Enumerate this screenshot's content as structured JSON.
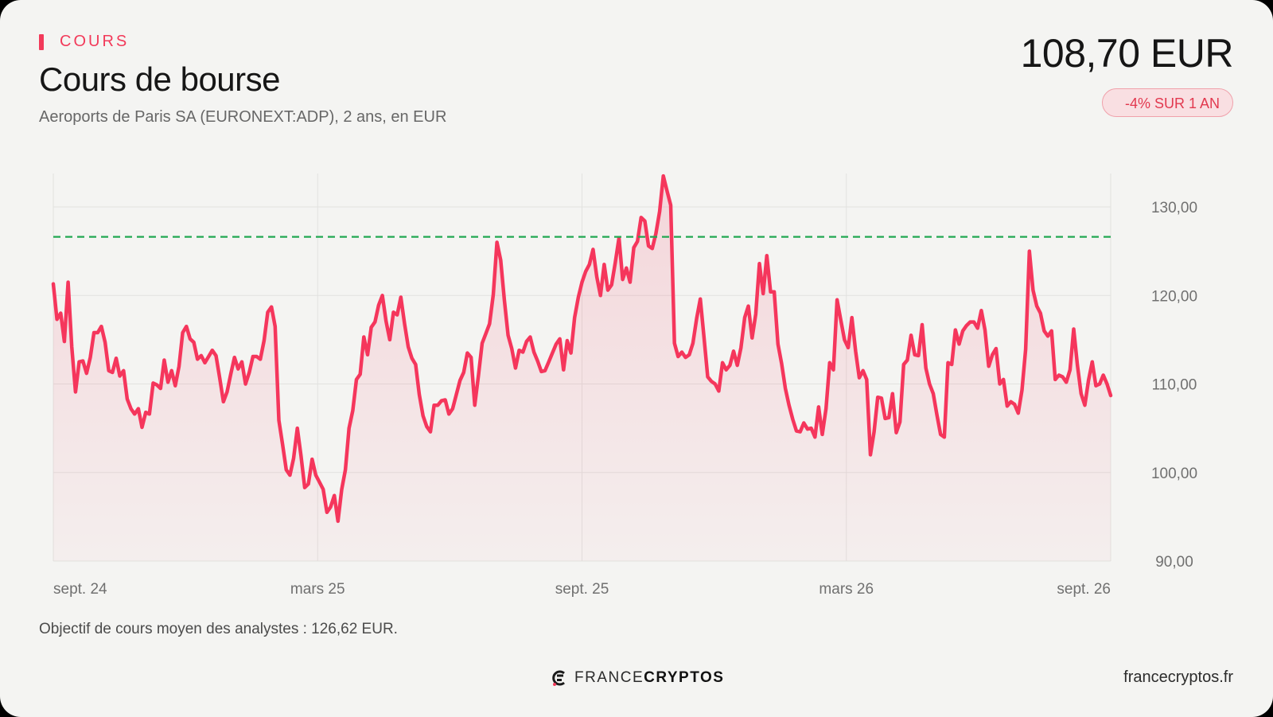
{
  "header": {
    "kicker": "COURS",
    "title": "Cours de bourse",
    "subtitle": "Aeroports de Paris SA (EURONEXT:ADP), 2 ans, en EUR",
    "price": "108,70 EUR",
    "change_badge": "-4% SUR 1 AN"
  },
  "footer": {
    "note": "Objectif de cours moyen des analystes : 126,62 EUR.",
    "logo_light": "FRANCE",
    "logo_bold": "CRYPTOS",
    "site": "francecryptos.fr"
  },
  "colors": {
    "accent": "#f23a5a",
    "line": "#f5365c",
    "target_line": "#22a852",
    "grid": "#e2e2df",
    "background": "#f4f4f2"
  },
  "icons": {
    "logo": "francecryptos-logo-icon"
  },
  "chart_data": {
    "type": "line",
    "series": [
      {
        "values": [
          121.3,
          117.3,
          118.0,
          114.8,
          121.5,
          114.2,
          109.1,
          112.5,
          112.6,
          111.2,
          113.0,
          115.8,
          115.8,
          116.5,
          114.7,
          111.5,
          111.3,
          112.9,
          110.9,
          111.5,
          108.3,
          107.2,
          106.6,
          107.2,
          105.1,
          106.8,
          106.6,
          110.1,
          109.9,
          109.5,
          112.7,
          110.2,
          111.5,
          109.8,
          112.0,
          115.8,
          116.5,
          115.1,
          114.7,
          112.8,
          113.2,
          112.4,
          113.1,
          113.8,
          113.2,
          110.7,
          108.0,
          109.1,
          111.1,
          113.0,
          111.7,
          112.5,
          110.0,
          111.3,
          113.1,
          113.1,
          112.8,
          114.9,
          118.1,
          118.7,
          116.5,
          105.9,
          103.2,
          100.3,
          99.7,
          101.6,
          105.0,
          101.9,
          98.3,
          98.7,
          101.5,
          99.7,
          98.9,
          98.1,
          95.5,
          96.1,
          97.4,
          94.5,
          98.1,
          100.3,
          105.0,
          107.0,
          110.5,
          111.1,
          115.3,
          113.3,
          116.4,
          117.0,
          118.9,
          120.0,
          117.1,
          115.0,
          118.1,
          117.8,
          119.8,
          116.8,
          114.2,
          112.9,
          112.2,
          108.8,
          106.4,
          105.2,
          104.6,
          107.6,
          107.6,
          108.1,
          108.2,
          106.6,
          107.2,
          108.8,
          110.4,
          111.3,
          113.5,
          113.0,
          107.6,
          111.0,
          114.6,
          115.7,
          116.8,
          120.1,
          126.0,
          124.0,
          119.5,
          115.5,
          114.0,
          111.8,
          113.8,
          113.6,
          114.8,
          115.3,
          113.6,
          112.6,
          111.4,
          111.5,
          112.5,
          113.5,
          114.5,
          115.1,
          111.6,
          114.9,
          113.5,
          117.5,
          119.8,
          121.5,
          122.7,
          123.5,
          125.2,
          122.1,
          120.0,
          123.5,
          120.6,
          121.2,
          123.7,
          126.5,
          121.8,
          123.1,
          121.5,
          125.4,
          126.1,
          128.8,
          128.4,
          125.6,
          125.3,
          127.0,
          129.5,
          133.5,
          131.8,
          130.2,
          114.6,
          113.1,
          113.6,
          113.0,
          113.3,
          114.6,
          117.4,
          119.6,
          115.3,
          110.8,
          110.3,
          110.0,
          109.2,
          112.4,
          111.6,
          112.1,
          113.7,
          112.1,
          114.1,
          117.5,
          118.8,
          115.2,
          117.9,
          123.6,
          120.2,
          124.5,
          120.4,
          120.4,
          114.5,
          112.3,
          109.5,
          107.6,
          106.0,
          104.7,
          104.6,
          105.6,
          104.9,
          105.0,
          104.0,
          107.4,
          104.3,
          107.2,
          112.4,
          111.6,
          119.5,
          117.2,
          115.0,
          114.1,
          117.5,
          113.7,
          110.7,
          111.5,
          110.5,
          102.0,
          104.6,
          108.5,
          108.4,
          106.1,
          106.2,
          108.9,
          104.5,
          105.7,
          112.2,
          112.7,
          115.5,
          113.3,
          113.2,
          116.7,
          111.8,
          110.0,
          108.9,
          106.5,
          104.3,
          104.0,
          112.4,
          112.2,
          116.1,
          114.5,
          116.0,
          116.6,
          117.0,
          117.0,
          116.3,
          118.3,
          116.1,
          112.0,
          113.3,
          114.0,
          110.0,
          110.5,
          107.5,
          108.0,
          107.7,
          106.7,
          109.3,
          113.9,
          125.0,
          120.6,
          118.8,
          118.0,
          116.0,
          115.4,
          116.0,
          110.5,
          111.0,
          110.8,
          110.2,
          111.6,
          116.2,
          112.1,
          108.9,
          107.6,
          110.4,
          112.5,
          109.8,
          110.0,
          111.0,
          110.0,
          108.7
        ]
      }
    ],
    "x_tick_labels": [
      "sept. 24",
      "mars 25",
      "sept. 25",
      "mars 26",
      "sept. 26"
    ],
    "y_ticks": [
      90,
      100,
      110,
      120,
      130
    ],
    "y_tick_labels": [
      "90,00",
      "100,00",
      "110,00",
      "120,00",
      "130,00"
    ],
    "ylim": [
      90,
      134
    ],
    "target": 126.62,
    "grid": true,
    "legend": "none"
  }
}
